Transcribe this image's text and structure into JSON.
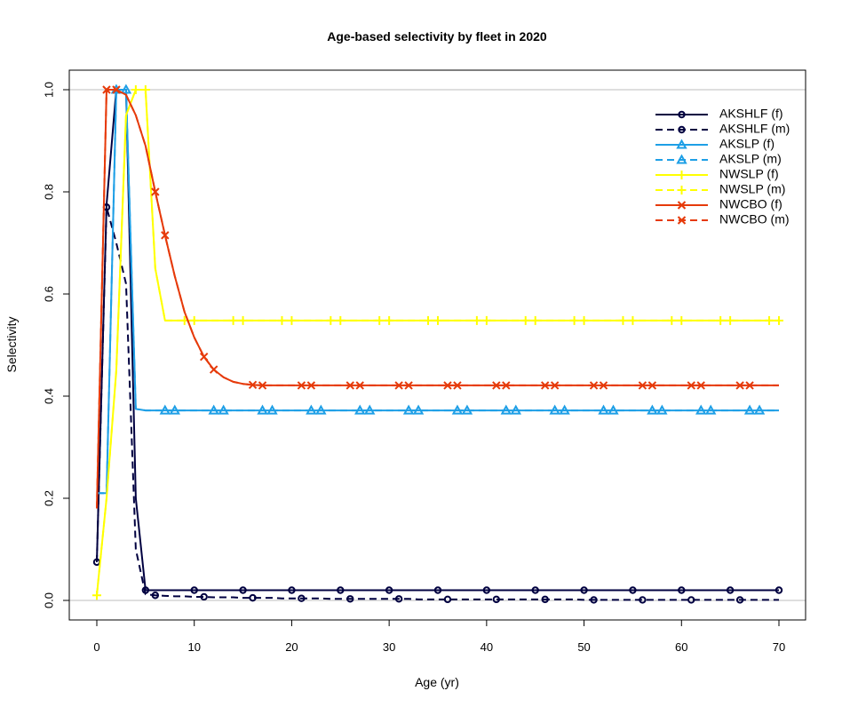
{
  "chart_data": {
    "type": "line",
    "title": "Age-based selectivity by fleet in 2020",
    "xlabel": "Age (yr)",
    "ylabel": "Selectivity",
    "xlim": [
      0,
      70
    ],
    "ylim": [
      0,
      1.0
    ],
    "xticks": [
      "0",
      "10",
      "20",
      "30",
      "40",
      "50",
      "60",
      "70"
    ],
    "yticks": [
      "0.0",
      "0.2",
      "0.4",
      "0.6",
      "0.8",
      "1.0"
    ],
    "legend_position": "top-right",
    "reference_lines_y": [
      0,
      1.0
    ],
    "series": [
      {
        "name": "AKSHLF (f)",
        "color": "#000040",
        "dash": "solid",
        "marker": "circle",
        "marker_start": 0,
        "marker_every": 5,
        "x": [
          0,
          1,
          2,
          3,
          4,
          5,
          6,
          7,
          8,
          9,
          10,
          11,
          12,
          13,
          14,
          15,
          16,
          17,
          18,
          19,
          20,
          21,
          22,
          23,
          24,
          25,
          26,
          27,
          28,
          29,
          30,
          31,
          32,
          33,
          34,
          35,
          36,
          37,
          38,
          39,
          40,
          41,
          42,
          43,
          44,
          45,
          46,
          47,
          48,
          49,
          50,
          51,
          52,
          53,
          54,
          55,
          56,
          57,
          58,
          59,
          60,
          61,
          62,
          63,
          64,
          65,
          66,
          67,
          68,
          69,
          70
        ],
        "y": [
          0.075,
          0.775,
          1.0,
          1.0,
          0.2,
          0.02,
          0.02,
          0.02,
          0.02,
          0.02,
          0.02,
          0.02,
          0.02,
          0.02,
          0.02,
          0.02,
          0.02,
          0.02,
          0.02,
          0.02,
          0.02,
          0.02,
          0.02,
          0.02,
          0.02,
          0.02,
          0.02,
          0.02,
          0.02,
          0.02,
          0.02,
          0.02,
          0.02,
          0.02,
          0.02,
          0.02,
          0.02,
          0.02,
          0.02,
          0.02,
          0.02,
          0.02,
          0.02,
          0.02,
          0.02,
          0.02,
          0.02,
          0.02,
          0.02,
          0.02,
          0.02,
          0.02,
          0.02,
          0.02,
          0.02,
          0.02,
          0.02,
          0.02,
          0.02,
          0.02,
          0.02,
          0.02,
          0.02,
          0.02,
          0.02,
          0.02,
          0.02,
          0.02,
          0.02,
          0.02,
          0.02
        ]
      },
      {
        "name": "AKSHLF (m)",
        "color": "#000040",
        "dash": "dashed",
        "marker": "circle",
        "marker_start": 1,
        "marker_every": 5,
        "x": [
          0,
          1,
          2,
          3,
          4,
          5,
          6,
          7,
          8,
          9,
          10,
          11,
          12,
          13,
          14,
          15,
          16,
          17,
          18,
          19,
          20,
          21,
          22,
          23,
          24,
          25,
          26,
          27,
          28,
          29,
          30,
          31,
          32,
          33,
          34,
          35,
          36,
          37,
          38,
          39,
          40,
          41,
          42,
          43,
          44,
          45,
          46,
          47,
          48,
          49,
          50,
          51,
          52,
          53,
          54,
          55,
          56,
          57,
          58,
          59,
          60,
          61,
          62,
          63,
          64,
          65,
          66,
          67,
          68,
          69,
          70
        ],
        "y": [
          0.075,
          0.77,
          0.7,
          0.62,
          0.1,
          0.012,
          0.01,
          0.009,
          0.008,
          0.008,
          0.007,
          0.007,
          0.006,
          0.006,
          0.006,
          0.005,
          0.005,
          0.005,
          0.005,
          0.004,
          0.004,
          0.004,
          0.004,
          0.004,
          0.003,
          0.003,
          0.003,
          0.003,
          0.003,
          0.003,
          0.003,
          0.003,
          0.003,
          0.002,
          0.002,
          0.002,
          0.002,
          0.002,
          0.002,
          0.002,
          0.002,
          0.002,
          0.002,
          0.002,
          0.002,
          0.002,
          0.002,
          0.002,
          0.002,
          0.002,
          0.001,
          0.001,
          0.001,
          0.001,
          0.001,
          0.001,
          0.001,
          0.001,
          0.001,
          0.001,
          0.001,
          0.001,
          0.001,
          0.001,
          0.001,
          0.001,
          0.001,
          0.001,
          0.001,
          0.001,
          0.001
        ]
      },
      {
        "name": "AKSLP (f)",
        "color": "#1E9FE6",
        "dash": "solid",
        "marker": "triangle",
        "marker_start": 2,
        "marker_every": 5,
        "x": [
          0,
          1,
          2,
          3,
          4,
          5,
          6,
          7,
          8,
          9,
          10,
          11,
          12,
          13,
          14,
          15,
          16,
          17,
          18,
          19,
          20,
          21,
          22,
          23,
          24,
          25,
          26,
          27,
          28,
          29,
          30,
          31,
          32,
          33,
          34,
          35,
          36,
          37,
          38,
          39,
          40,
          41,
          42,
          43,
          44,
          45,
          46,
          47,
          48,
          49,
          50,
          51,
          52,
          53,
          54,
          55,
          56,
          57,
          58,
          59,
          60,
          61,
          62,
          63,
          64,
          65,
          66,
          67,
          68,
          69,
          70
        ],
        "y": [
          0.21,
          0.21,
          1.0,
          1.0,
          0.375,
          0.372,
          0.372,
          0.372,
          0.372,
          0.372,
          0.372,
          0.372,
          0.372,
          0.372,
          0.372,
          0.372,
          0.372,
          0.372,
          0.372,
          0.372,
          0.372,
          0.372,
          0.372,
          0.372,
          0.372,
          0.372,
          0.372,
          0.372,
          0.372,
          0.372,
          0.372,
          0.372,
          0.372,
          0.372,
          0.372,
          0.372,
          0.372,
          0.372,
          0.372,
          0.372,
          0.372,
          0.372,
          0.372,
          0.372,
          0.372,
          0.372,
          0.372,
          0.372,
          0.372,
          0.372,
          0.372,
          0.372,
          0.372,
          0.372,
          0.372,
          0.372,
          0.372,
          0.372,
          0.372,
          0.372,
          0.372,
          0.372,
          0.372,
          0.372,
          0.372,
          0.372,
          0.372,
          0.372,
          0.372,
          0.372,
          0.372
        ]
      },
      {
        "name": "AKSLP (m)",
        "color": "#1E9FE6",
        "dash": "dashed",
        "marker": "triangle",
        "marker_start": 3,
        "marker_every": 5,
        "x": [
          0,
          1,
          2,
          3,
          4,
          5,
          6,
          7,
          8,
          9,
          10,
          11,
          12,
          13,
          14,
          15,
          16,
          17,
          18,
          19,
          20,
          21,
          22,
          23,
          24,
          25,
          26,
          27,
          28,
          29,
          30,
          31,
          32,
          33,
          34,
          35,
          36,
          37,
          38,
          39,
          40,
          41,
          42,
          43,
          44,
          45,
          46,
          47,
          48,
          49,
          50,
          51,
          52,
          53,
          54,
          55,
          56,
          57,
          58,
          59,
          60,
          61,
          62,
          63,
          64,
          65,
          66,
          67,
          68,
          69,
          70
        ],
        "y": [
          0.21,
          0.21,
          1.0,
          1.0,
          0.375,
          0.372,
          0.372,
          0.372,
          0.372,
          0.372,
          0.372,
          0.372,
          0.372,
          0.372,
          0.372,
          0.372,
          0.372,
          0.372,
          0.372,
          0.372,
          0.372,
          0.372,
          0.372,
          0.372,
          0.372,
          0.372,
          0.372,
          0.372,
          0.372,
          0.372,
          0.372,
          0.372,
          0.372,
          0.372,
          0.372,
          0.372,
          0.372,
          0.372,
          0.372,
          0.372,
          0.372,
          0.372,
          0.372,
          0.372,
          0.372,
          0.372,
          0.372,
          0.372,
          0.372,
          0.372,
          0.372,
          0.372,
          0.372,
          0.372,
          0.372,
          0.372,
          0.372,
          0.372,
          0.372,
          0.372,
          0.372,
          0.372,
          0.372,
          0.372,
          0.372,
          0.372,
          0.372,
          0.372,
          0.372,
          0.372,
          0.372
        ]
      },
      {
        "name": "NWSLP (f)",
        "color": "#FFFF00",
        "dash": "solid",
        "marker": "plus",
        "marker_start": 4,
        "marker_every": 5,
        "x": [
          0,
          1,
          2,
          3,
          4,
          5,
          6,
          7,
          8,
          9,
          10,
          11,
          12,
          13,
          14,
          15,
          16,
          17,
          18,
          19,
          20,
          21,
          22,
          23,
          24,
          25,
          26,
          27,
          28,
          29,
          30,
          31,
          32,
          33,
          34,
          35,
          36,
          37,
          38,
          39,
          40,
          41,
          42,
          43,
          44,
          45,
          46,
          47,
          48,
          49,
          50,
          51,
          52,
          53,
          54,
          55,
          56,
          57,
          58,
          59,
          60,
          61,
          62,
          63,
          64,
          65,
          66,
          67,
          68,
          69,
          70
        ],
        "y": [
          0.01,
          0.2,
          0.45,
          0.95,
          1.0,
          1.0,
          0.65,
          0.548,
          0.548,
          0.548,
          0.548,
          0.548,
          0.548,
          0.548,
          0.548,
          0.548,
          0.548,
          0.548,
          0.548,
          0.548,
          0.548,
          0.548,
          0.548,
          0.548,
          0.548,
          0.548,
          0.548,
          0.548,
          0.548,
          0.548,
          0.548,
          0.548,
          0.548,
          0.548,
          0.548,
          0.548,
          0.548,
          0.548,
          0.548,
          0.548,
          0.548,
          0.548,
          0.548,
          0.548,
          0.548,
          0.548,
          0.548,
          0.548,
          0.548,
          0.548,
          0.548,
          0.548,
          0.548,
          0.548,
          0.548,
          0.548,
          0.548,
          0.548,
          0.548,
          0.548,
          0.548,
          0.548,
          0.548,
          0.548,
          0.548,
          0.548,
          0.548,
          0.548,
          0.548,
          0.548,
          0.548
        ]
      },
      {
        "name": "NWSLP (m)",
        "color": "#FFFF00",
        "dash": "dashed",
        "marker": "plus",
        "marker_start": 0,
        "marker_every": 5,
        "x": [
          0,
          1,
          2,
          3,
          4,
          5,
          6,
          7,
          8,
          9,
          10,
          11,
          12,
          13,
          14,
          15,
          16,
          17,
          18,
          19,
          20,
          21,
          22,
          23,
          24,
          25,
          26,
          27,
          28,
          29,
          30,
          31,
          32,
          33,
          34,
          35,
          36,
          37,
          38,
          39,
          40,
          41,
          42,
          43,
          44,
          45,
          46,
          47,
          48,
          49,
          50,
          51,
          52,
          53,
          54,
          55,
          56,
          57,
          58,
          59,
          60,
          61,
          62,
          63,
          64,
          65,
          66,
          67,
          68,
          69,
          70
        ],
        "y": [
          0.01,
          0.2,
          0.45,
          0.95,
          1.0,
          1.0,
          0.65,
          0.548,
          0.548,
          0.548,
          0.548,
          0.548,
          0.548,
          0.548,
          0.548,
          0.548,
          0.548,
          0.548,
          0.548,
          0.548,
          0.548,
          0.548,
          0.548,
          0.548,
          0.548,
          0.548,
          0.548,
          0.548,
          0.548,
          0.548,
          0.548,
          0.548,
          0.548,
          0.548,
          0.548,
          0.548,
          0.548,
          0.548,
          0.548,
          0.548,
          0.548,
          0.548,
          0.548,
          0.548,
          0.548,
          0.548,
          0.548,
          0.548,
          0.548,
          0.548,
          0.548,
          0.548,
          0.548,
          0.548,
          0.548,
          0.548,
          0.548,
          0.548,
          0.548,
          0.548,
          0.548,
          0.548,
          0.548,
          0.548,
          0.548,
          0.548,
          0.548,
          0.548,
          0.548,
          0.548,
          0.548
        ]
      },
      {
        "name": "NWCBO (f)",
        "color": "#E63A0A",
        "dash": "solid",
        "marker": "cross",
        "marker_start": 1,
        "marker_every": 5,
        "x": [
          0,
          1,
          2,
          3,
          4,
          5,
          6,
          7,
          8,
          9,
          10,
          11,
          12,
          13,
          14,
          15,
          16,
          17,
          18,
          19,
          20,
          21,
          22,
          23,
          24,
          25,
          26,
          27,
          28,
          29,
          30,
          31,
          32,
          33,
          34,
          35,
          36,
          37,
          38,
          39,
          40,
          41,
          42,
          43,
          44,
          45,
          46,
          47,
          48,
          49,
          50,
          51,
          52,
          53,
          54,
          55,
          56,
          57,
          58,
          59,
          60,
          61,
          62,
          63,
          64,
          65,
          66,
          67,
          68,
          69,
          70
        ],
        "y": [
          0.18,
          1.0,
          1.0,
          0.99,
          0.95,
          0.89,
          0.8,
          0.715,
          0.635,
          0.565,
          0.515,
          0.477,
          0.452,
          0.437,
          0.428,
          0.424,
          0.422,
          0.421,
          0.421,
          0.421,
          0.421,
          0.421,
          0.421,
          0.421,
          0.421,
          0.421,
          0.421,
          0.421,
          0.421,
          0.421,
          0.421,
          0.421,
          0.421,
          0.421,
          0.421,
          0.421,
          0.421,
          0.421,
          0.421,
          0.421,
          0.421,
          0.421,
          0.421,
          0.421,
          0.421,
          0.421,
          0.421,
          0.421,
          0.421,
          0.421,
          0.421,
          0.421,
          0.421,
          0.421,
          0.421,
          0.421,
          0.421,
          0.421,
          0.421,
          0.421,
          0.421,
          0.421,
          0.421,
          0.421,
          0.421,
          0.421,
          0.421,
          0.421,
          0.421,
          0.421,
          0.421
        ]
      },
      {
        "name": "NWCBO (m)",
        "color": "#E63A0A",
        "dash": "dashed",
        "marker": "cross",
        "marker_start": 2,
        "marker_every": 5,
        "x": [
          0,
          1,
          2,
          3,
          4,
          5,
          6,
          7,
          8,
          9,
          10,
          11,
          12,
          13,
          14,
          15,
          16,
          17,
          18,
          19,
          20,
          21,
          22,
          23,
          24,
          25,
          26,
          27,
          28,
          29,
          30,
          31,
          32,
          33,
          34,
          35,
          36,
          37,
          38,
          39,
          40,
          41,
          42,
          43,
          44,
          45,
          46,
          47,
          48,
          49,
          50,
          51,
          52,
          53,
          54,
          55,
          56,
          57,
          58,
          59,
          60,
          61,
          62,
          63,
          64,
          65,
          66,
          67,
          68,
          69,
          70
        ],
        "y": [
          0.18,
          1.0,
          1.0,
          0.99,
          0.95,
          0.89,
          0.8,
          0.715,
          0.635,
          0.565,
          0.515,
          0.477,
          0.452,
          0.437,
          0.428,
          0.424,
          0.422,
          0.421,
          0.421,
          0.421,
          0.421,
          0.421,
          0.421,
          0.421,
          0.421,
          0.421,
          0.421,
          0.421,
          0.421,
          0.421,
          0.421,
          0.421,
          0.421,
          0.421,
          0.421,
          0.421,
          0.421,
          0.421,
          0.421,
          0.421,
          0.421,
          0.421,
          0.421,
          0.421,
          0.421,
          0.421,
          0.421,
          0.421,
          0.421,
          0.421,
          0.421,
          0.421,
          0.421,
          0.421,
          0.421,
          0.421,
          0.421,
          0.421,
          0.421,
          0.421,
          0.421,
          0.421,
          0.421,
          0.421,
          0.421,
          0.421,
          0.421,
          0.421,
          0.421,
          0.421,
          0.421
        ]
      }
    ]
  }
}
